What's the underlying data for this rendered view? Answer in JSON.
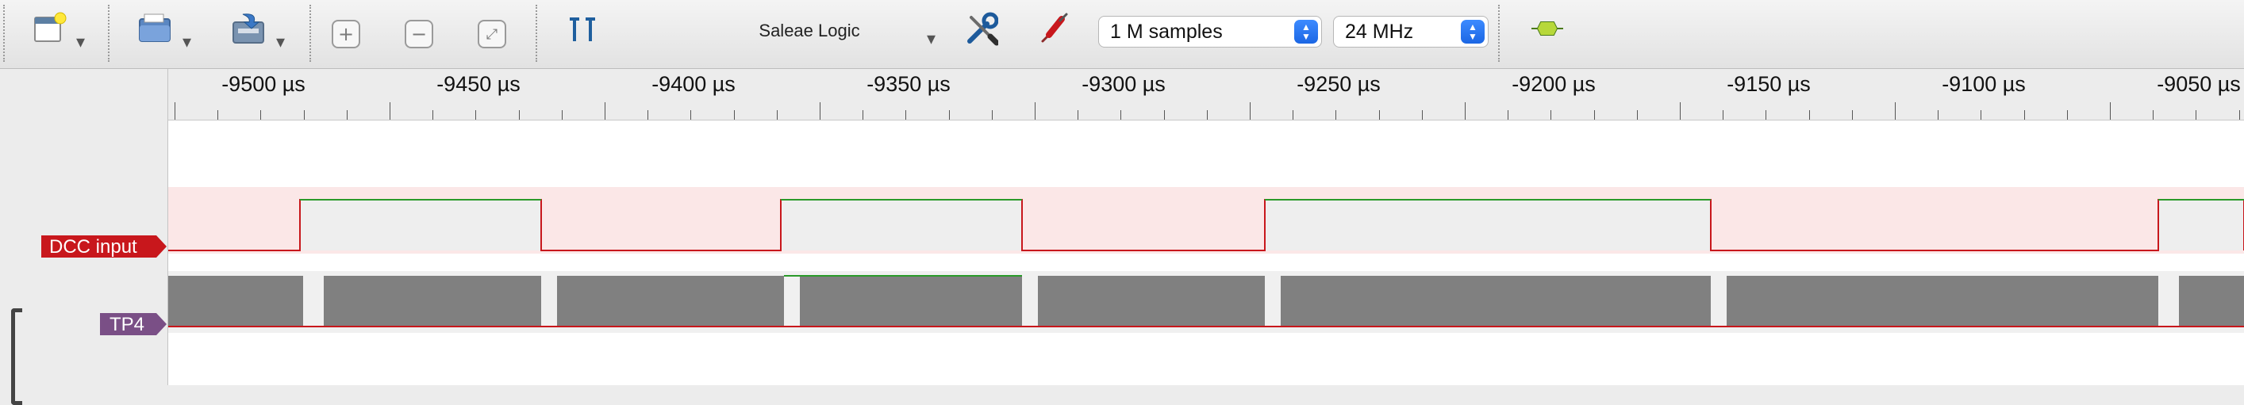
{
  "toolbar": {
    "app_title": "Saleae Logic",
    "samples_value": "1 M samples",
    "rate_value": "24 MHz",
    "caret": "▾"
  },
  "ruler": {
    "ticks": [
      "-9500 µs",
      "-9450 µs",
      "-9400 µs",
      "-9350 µs",
      "-9300 µs",
      "-9250 µs",
      "-9200 µs",
      "-9150 µs",
      "-9100 µs",
      "-9050 µs"
    ]
  },
  "channels": [
    {
      "label": "DCC input",
      "color": "#c8171c",
      "band": "#fbe7e7",
      "high_fill": "#eeeeee"
    },
    {
      "label": "TP4",
      "color": "#7a4f86",
      "band": "#ffffff",
      "block_fill": "#808080"
    }
  ],
  "colors": {
    "high_line": "#2a9a2a",
    "low_line": "#c8171c"
  }
}
